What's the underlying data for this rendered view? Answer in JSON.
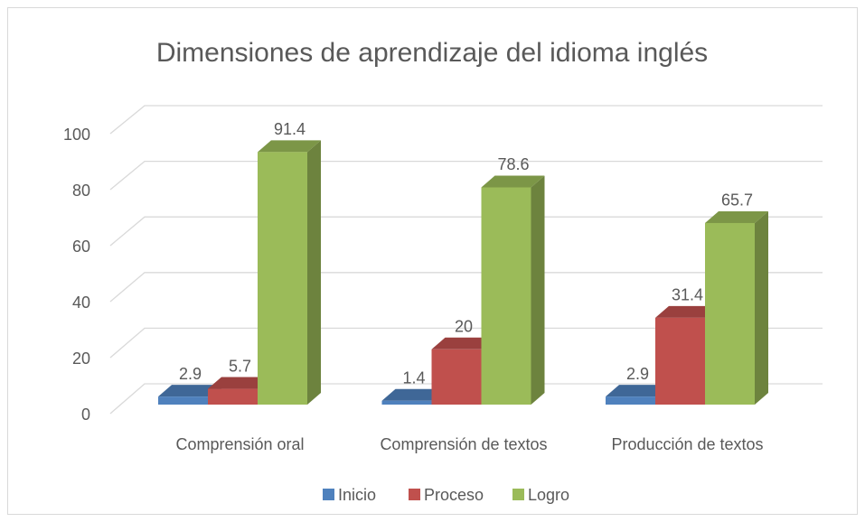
{
  "chart_data": {
    "type": "bar3d",
    "title": "Dimensiones de aprendizaje del idioma inglés",
    "categories": [
      "Comprensión oral",
      "Comprensión de textos",
      "Producción de textos"
    ],
    "series": [
      {
        "name": "Inicio",
        "color": "#4f81bd",
        "values": [
          2.9,
          1.4,
          2.9
        ]
      },
      {
        "name": "Proceso",
        "color": "#c0504d",
        "values": [
          5.7,
          20,
          31.4
        ]
      },
      {
        "name": "Logro",
        "color": "#9bbb59",
        "values": [
          91.4,
          78.6,
          65.7
        ]
      }
    ],
    "ylim": [
      0,
      100
    ],
    "yticks": [
      0,
      20,
      40,
      60,
      80,
      100
    ],
    "grid": true,
    "legend": "bottom"
  }
}
